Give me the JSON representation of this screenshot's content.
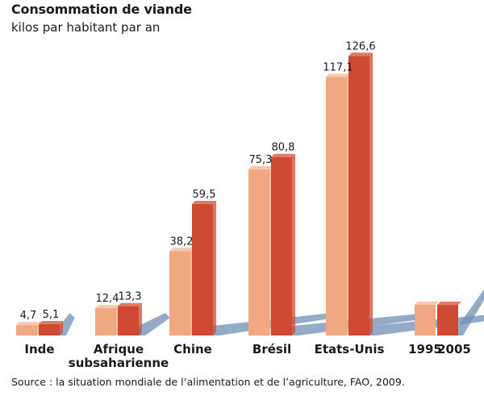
{
  "title": "Consommation de viande",
  "subtitle": "kilos par habitant par an",
  "source": "Source : la situation mondiale de l’alimentation et de l’agriculture, FAO, 2009.",
  "colors": {
    "series_1995": "#f0a882",
    "series_1995_top": "#f7c9ad",
    "series_2005": "#cf4a32",
    "series_2005_top": "#e47a62",
    "shadow": "#6f8fb3"
  },
  "chart_data": {
    "type": "bar",
    "title": "Consommation de viande",
    "subtitle": "kilos par habitant par an",
    "categories": [
      "Inde",
      "Afrique subsaharienne",
      "Chine",
      "Brésil",
      "Etats-Unis"
    ],
    "category_label_lines": [
      [
        "Inde"
      ],
      [
        "Afrique",
        "subsaharienne"
      ],
      [
        "Chine"
      ],
      [
        "Brésil"
      ],
      [
        "Etats-Unis"
      ]
    ],
    "series": [
      {
        "name": "1995",
        "values": [
          4.7,
          12.4,
          38.2,
          75.3,
          117.1
        ],
        "labels": [
          "4,7",
          "12,4",
          "38,2",
          "75,3",
          "117,1"
        ]
      },
      {
        "name": "2005",
        "values": [
          5.1,
          13.3,
          59.5,
          80.8,
          126.6
        ],
        "labels": [
          "5,1",
          "13,3",
          "59,5",
          "80,8",
          "126,6"
        ]
      }
    ],
    "ylim": [
      0,
      130
    ],
    "grid": false,
    "legend": {
      "position": "bottom-right",
      "labels": [
        "1995",
        "2005"
      ]
    }
  }
}
